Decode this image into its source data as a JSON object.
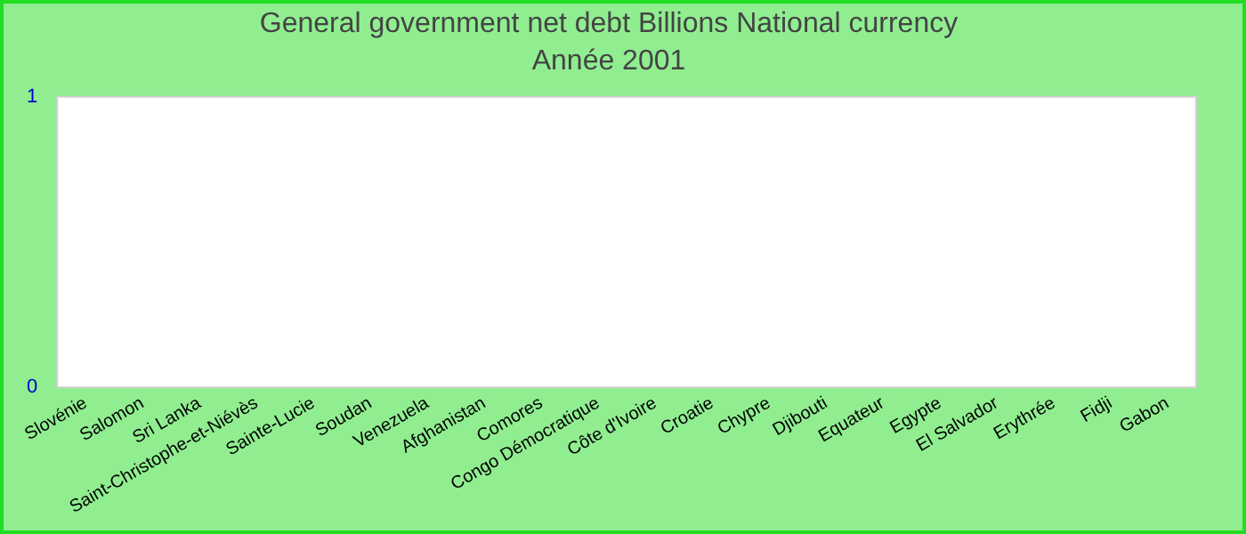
{
  "chart_data": {
    "type": "bar",
    "title": "General government net debt Billions National currency",
    "subtitle": "Année 2001",
    "categories": [
      "Slovénie",
      "Salomon",
      "Sri Lanka",
      "Saint-Christophe-et-Niévès",
      "Sainte-Lucie",
      "Soudan",
      "Venezuela",
      "Afghanistan",
      "Comores",
      "Congo Démocratique",
      "Côte d'Ivoire",
      "Croatie",
      "Chypre",
      "Djibouti",
      "Equateur",
      "Egypte",
      "El Salvador",
      "Erythrée",
      "Fidji",
      "Gabon"
    ],
    "values": [
      0,
      0,
      0,
      0,
      0,
      0,
      0,
      0,
      0,
      0,
      0,
      0,
      0,
      0,
      0,
      0,
      0,
      0,
      0,
      0
    ],
    "ylim": [
      0,
      1
    ],
    "yticks": [
      0,
      1
    ],
    "grid": false,
    "legend": false
  }
}
